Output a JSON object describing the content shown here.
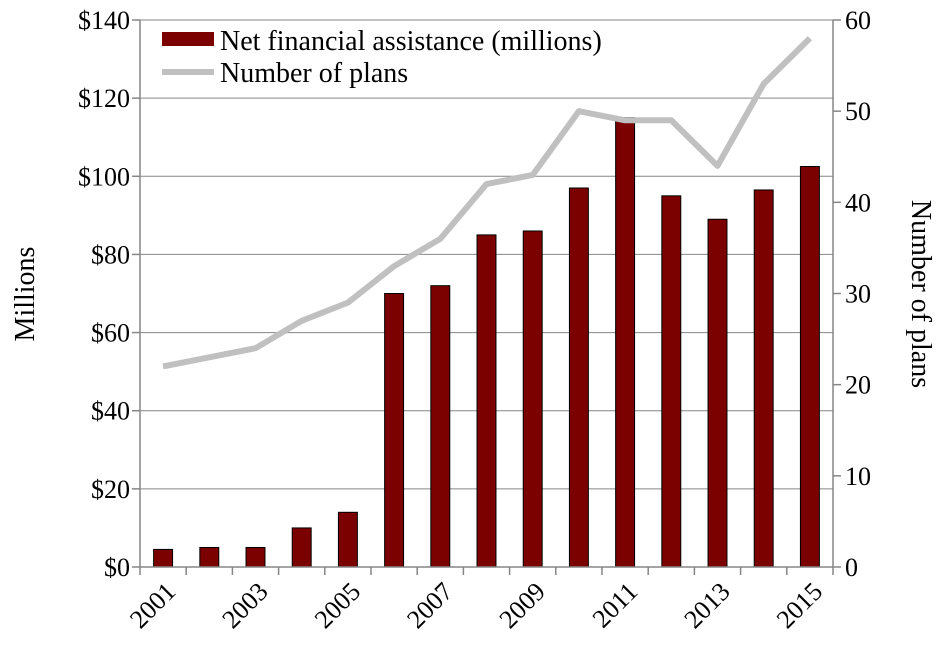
{
  "chart_data": {
    "type": "bar",
    "categories": [
      "2001",
      "2002",
      "2003",
      "2004",
      "2005",
      "2006",
      "2007",
      "2008",
      "2009",
      "2010",
      "2011",
      "2012",
      "2013",
      "2014",
      "2015"
    ],
    "x_tick_labels": [
      "2001",
      "2003",
      "2005",
      "2007",
      "2009",
      "2011",
      "2013",
      "2015"
    ],
    "series": [
      {
        "name": "Net financial assistance (millions)",
        "type": "bar",
        "axis": "left",
        "color": "#7b0000",
        "values": [
          4.5,
          5,
          5,
          10,
          14,
          70,
          72,
          85,
          86,
          97,
          115,
          95,
          89,
          96.5,
          102.5
        ]
      },
      {
        "name": "Number of plans",
        "type": "line",
        "axis": "right",
        "color": "#c0c0c0",
        "values": [
          22,
          23,
          24,
          27,
          29,
          33,
          36,
          42,
          43,
          50,
          49,
          49,
          44,
          53,
          58
        ]
      }
    ],
    "ylabel": "Millions",
    "ylabel_right": "Number of plans",
    "ylim": [
      0,
      140
    ],
    "ylim_right": [
      0,
      60
    ],
    "y_ticks": [
      "$0",
      "$20",
      "$40",
      "$60",
      "$80",
      "$100",
      "$120",
      "$140"
    ],
    "y_ticks_right": [
      "0",
      "10",
      "20",
      "30",
      "40",
      "50",
      "60"
    ],
    "grid": "horizontal",
    "legend_position": "top-left"
  }
}
